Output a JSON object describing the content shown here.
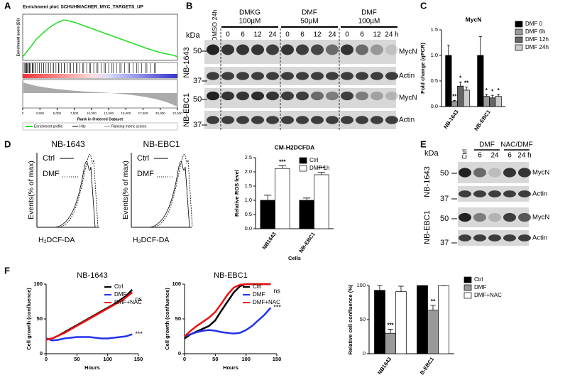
{
  "panel_labels": [
    "A",
    "B",
    "C",
    "D",
    "E",
    "F"
  ],
  "panel_b": {
    "kda": "kDa",
    "treatments": [
      {
        "name": "DMSO 24h"
      },
      {
        "name": "DMKG",
        "dose": "100µM"
      },
      {
        "name": "DMF",
        "dose": "50µM"
      },
      {
        "name": "DMF",
        "dose": "100µM"
      }
    ],
    "times": [
      "0",
      "6",
      "12",
      "24",
      "0",
      "6",
      "12",
      "24",
      "0",
      "6",
      "12",
      "24 h"
    ],
    "markers": [
      "50",
      "37",
      "50",
      "37"
    ],
    "proteins": [
      "MycN",
      "Actin",
      "MycN",
      "Actin"
    ],
    "cells": [
      "NB-1643",
      "NB-EBC1"
    ]
  },
  "panel_d_flow": {
    "cells": [
      "NB-1643",
      "NB-EBC1"
    ],
    "ctrl": "Ctrl",
    "dmf": "DMF",
    "ylabel": "Events(% of max)",
    "xlabel": "H₂DCF-DA"
  },
  "panel_e": {
    "kda": "kDa",
    "lanes": [
      "Ctrl"
    ],
    "groups": [
      "DMF",
      "NAC/DMF"
    ],
    "times": [
      "6",
      "24",
      "6",
      "24 h"
    ],
    "markers": [
      "50",
      "37",
      "50",
      "37"
    ],
    "proteins": [
      "MycN",
      "Actin",
      "MycN",
      "Actin"
    ],
    "cells": [
      "NB-1643",
      "NB-EBC1"
    ]
  },
  "chart_data": [
    {
      "type": "line",
      "title": "Enrichment plot: SCHUHMACHER_MYC_TARGETS_UP",
      "xlabel": "Rank in Ordered Dataset",
      "ylabel": "Enrichment score (ES)",
      "legend": "bottom",
      "x": [
        0,
        1000,
        2000,
        3000,
        4000,
        5000,
        6000,
        7000,
        8000,
        10000,
        12000,
        14000,
        16000,
        18000,
        20000,
        22000,
        22500
      ],
      "series": [
        {
          "name": "Enrichment profile",
          "color": "#22dd22",
          "values": [
            0,
            0.12,
            0.25,
            0.34,
            0.42,
            0.48,
            0.52,
            0.5,
            0.47,
            0.4,
            0.33,
            0.26,
            0.19,
            0.12,
            0.06,
            0.02,
            0
          ]
        }
      ],
      "xlim": [
        0,
        22500
      ],
      "ylim": [
        -0.05,
        0.6
      ],
      "xticks": [
        0,
        {
          "value": 2500,
          "label": "2,500"
        },
        {
          "value": 5000,
          "label": "5,000"
        },
        {
          "value": 7500,
          "label": "7,500"
        },
        {
          "value": 10000,
          "label": "10,000"
        },
        {
          "value": 12500,
          "label": "12,500"
        },
        {
          "value": 15000,
          "label": "15,000"
        },
        {
          "value": 17500,
          "label": "17,500"
        },
        {
          "value": 20000,
          "label": "20,000"
        },
        {
          "value": 22500,
          "label": "22,500"
        }
      ],
      "legend_extra": [
        "Hits",
        "Ranking metric scores"
      ]
    },
    {
      "type": "bar",
      "title": "MycN",
      "ylabel": "Fold change (qPCR)",
      "legend": "right",
      "categories": [
        "NB-1643",
        "NB-EBC1"
      ],
      "series": [
        {
          "name": "DMF 0",
          "color": "#000000",
          "values": [
            1.0,
            1.0
          ],
          "errors": [
            0.2,
            0.37
          ]
        },
        {
          "name": "DMF 6h",
          "color": "#999999",
          "values": [
            0.1,
            0.2
          ],
          "errors": [
            0.02,
            0.04
          ],
          "significance": [
            "**",
            "*"
          ]
        },
        {
          "name": "DMF 12h",
          "color": "#666666",
          "values": [
            0.4,
            0.17
          ],
          "errors": [
            0.08,
            0.05
          ],
          "significance": [
            "*",
            "*"
          ]
        },
        {
          "name": "DMF 24h",
          "color": "#cccccc",
          "values": [
            0.32,
            0.2
          ],
          "errors": [
            0.06,
            0.04
          ],
          "significance": [
            "**",
            "*"
          ]
        }
      ],
      "ylim": [
        0,
        1.5
      ],
      "yticks": [
        {
          "value": 0,
          "label": "0.0"
        },
        {
          "value": 0.5,
          "label": "0.5"
        },
        {
          "value": 1,
          "label": "1.0"
        },
        {
          "value": 1.5,
          "label": "1.5"
        }
      ]
    },
    {
      "type": "bar",
      "title": "CM-H2DCFDA",
      "ylabel": "Relative ROS level",
      "xlabel": "Cells",
      "legend": "top-right",
      "categories": [
        "NB1643",
        "NB-EBC1"
      ],
      "series": [
        {
          "name": "Ctrl",
          "color": "#000000",
          "values": [
            1.0,
            1.0
          ],
          "errors": [
            0.18,
            0.08
          ]
        },
        {
          "name": "DMF 1h",
          "color": "#ffffff",
          "values": [
            2.12,
            1.9
          ],
          "errors": [
            0.1,
            0.08
          ],
          "significance": [
            "***",
            "***"
          ]
        }
      ],
      "ylim": [
        0,
        2.5
      ],
      "yticks": [
        {
          "value": 0,
          "label": "0.0"
        },
        {
          "value": 0.5,
          "label": "0.5"
        },
        {
          "value": 1,
          "label": "1.0"
        },
        {
          "value": 1.5,
          "label": "1.5"
        },
        {
          "value": 2,
          "label": "2.0"
        },
        {
          "value": 2.5,
          "label": "2.5"
        }
      ]
    },
    {
      "type": "line",
      "title": "NB-1643",
      "xlabel": "Hours",
      "ylabel": "Cell growth (confluence)",
      "legend": "top-right",
      "x": [
        0,
        10,
        20,
        30,
        40,
        50,
        60,
        70,
        80,
        90,
        100,
        110,
        120,
        130,
        140
      ],
      "series": [
        {
          "name": "Ctrl",
          "color": "#000000",
          "values": [
            20,
            22,
            26,
            31,
            36,
            41,
            46,
            51,
            56,
            61,
            66,
            71,
            77,
            83,
            92
          ]
        },
        {
          "name": "DMF",
          "color": "#2233ee",
          "values": [
            22,
            19,
            20,
            22,
            23,
            24,
            24,
            24,
            23,
            22,
            22,
            23,
            24,
            25,
            28
          ],
          "end_label": "***"
        },
        {
          "name": "DMF+NAC",
          "color": "#ee1111",
          "values": [
            20,
            22,
            26,
            30,
            35,
            40,
            45,
            50,
            55,
            60,
            65,
            70,
            75,
            81,
            88
          ],
          "end_label": "ns"
        }
      ],
      "xlim": [
        0,
        150
      ],
      "xticks": [
        0,
        50,
        100,
        150
      ],
      "ylim": [
        0,
        100
      ],
      "yticks": [
        0,
        50,
        100
      ]
    },
    {
      "type": "line",
      "title": "NB-EBC1",
      "xlabel": "Hours",
      "ylabel": "Cell growth (confluence)",
      "legend": "top-right",
      "x": [
        0,
        10,
        20,
        30,
        40,
        50,
        60,
        70,
        80,
        90,
        100,
        110,
        120,
        130,
        140
      ],
      "series": [
        {
          "name": "Ctrl",
          "color": "#000000",
          "values": [
            22,
            28,
            32,
            36,
            40,
            48,
            62,
            75,
            88,
            97,
            100,
            100,
            100,
            100,
            100
          ]
        },
        {
          "name": "DMF",
          "color": "#2233ee",
          "values": [
            25,
            28,
            31,
            33,
            34,
            33,
            31,
            30,
            29,
            30,
            34,
            40,
            48,
            56,
            66
          ],
          "end_label": "***"
        },
        {
          "name": "DMF+NAC",
          "color": "#ee1111",
          "values": [
            25,
            33,
            40,
            46,
            52,
            60,
            72,
            85,
            95,
            99,
            100,
            100,
            100,
            100,
            100
          ],
          "end_label": "ns"
        }
      ],
      "xlim": [
        0,
        150
      ],
      "xticks": [
        0,
        50,
        100,
        150
      ],
      "ylim": [
        0,
        100
      ],
      "yticks": [
        0,
        50,
        100
      ]
    },
    {
      "type": "bar",
      "ylabel": "Relative cell confluence (%)",
      "xlabel": "Cells",
      "legend": "right",
      "categories": [
        "NB1643",
        "B-EBC1"
      ],
      "series": [
        {
          "name": "Ctrl",
          "color": "#000000",
          "values": [
            93,
            100
          ],
          "errors": [
            7,
            0
          ]
        },
        {
          "name": "DMF",
          "color": "#999999",
          "values": [
            30,
            64
          ],
          "errors": [
            6,
            7
          ],
          "significance": [
            "***",
            "**"
          ]
        },
        {
          "name": "DMF+NAC",
          "color": "#ffffff",
          "values": [
            91,
            100
          ],
          "errors": [
            8,
            0
          ]
        }
      ],
      "ylim": [
        0,
        100
      ],
      "yticks": [
        0,
        50,
        100
      ]
    }
  ]
}
